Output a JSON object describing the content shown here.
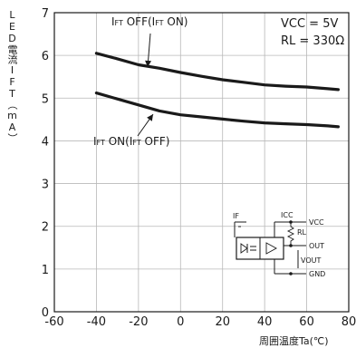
{
  "chart_data": {
    "type": "line",
    "title": "",
    "ylabel": "LED電流IFT（mA）",
    "xlabel": "周囲温度Ta(℃)",
    "xlim": [
      -60,
      80
    ],
    "ylim": [
      0,
      7
    ],
    "xticks": [
      "-60",
      "-40",
      "-20",
      "0",
      "20",
      "40",
      "60",
      "80"
    ],
    "yticks": [
      "0",
      "1",
      "2",
      "3",
      "4",
      "5",
      "6",
      "7"
    ],
    "grid": true,
    "series": [
      {
        "name": "IFT OFF(IFT ON)",
        "color": "#1a1a1a",
        "x": [
          -40,
          -30,
          -20,
          -10,
          0,
          10,
          20,
          30,
          40,
          50,
          60,
          70,
          75
        ],
        "y": [
          6.05,
          5.92,
          5.78,
          5.7,
          5.6,
          5.51,
          5.43,
          5.37,
          5.31,
          5.28,
          5.26,
          5.22,
          5.2
        ]
      },
      {
        "name": "IFT ON(IFT OFF)",
        "color": "#1a1a1a",
        "x": [
          -40,
          -30,
          -20,
          -10,
          0,
          10,
          20,
          30,
          40,
          50,
          60,
          70,
          75
        ],
        "y": [
          5.12,
          4.98,
          4.84,
          4.7,
          4.61,
          4.56,
          4.51,
          4.46,
          4.42,
          4.4,
          4.38,
          4.35,
          4.33
        ]
      }
    ],
    "annotations": {
      "upper": {
        "main": "I",
        "sub": "FT",
        "text1": " OFF(I",
        "sub2": "FT",
        "text2": " ON)"
      },
      "lower": {
        "main": "I",
        "sub": "FT",
        "text1": " ON(I",
        "sub2": "FT",
        "text2": " OFF)"
      }
    },
    "conditions": {
      "vcc": "VCC = 5V",
      "rl": "RL = 330Ω"
    },
    "circuit": {
      "if_label": "IF",
      "icc_label": "ICC",
      "vcc_label": "VCC",
      "rl_label": "RL",
      "out_label": "OUT",
      "vout_label": "VOUT",
      "gnd_label": "GND"
    }
  }
}
